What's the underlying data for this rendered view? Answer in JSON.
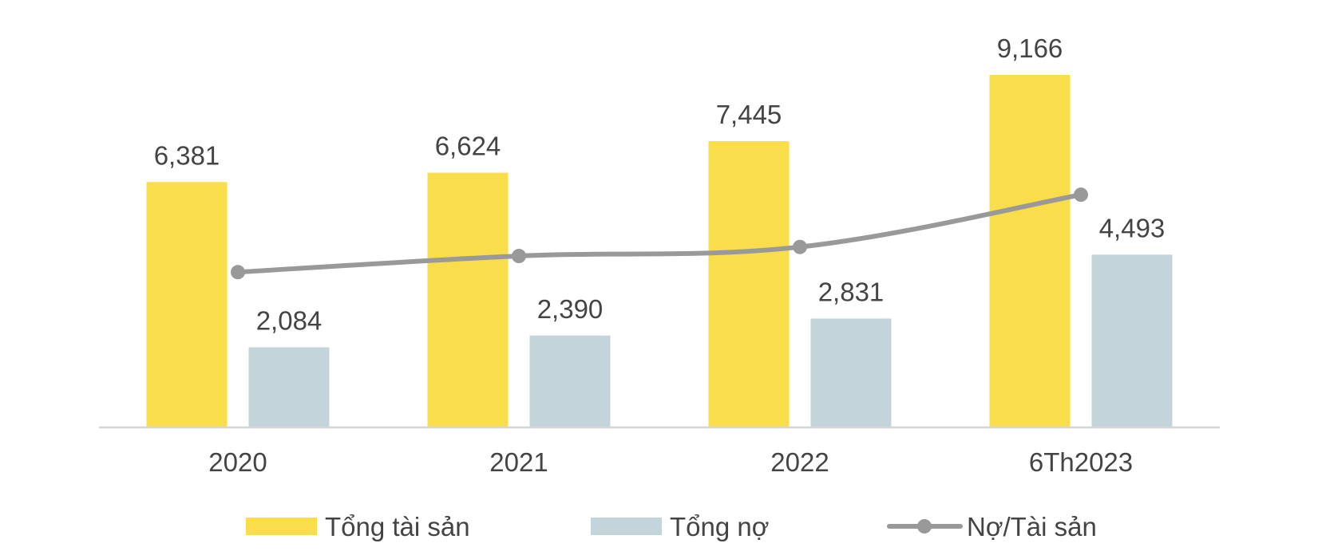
{
  "chart_data": {
    "type": "bar",
    "categories": [
      "2020",
      "2021",
      "2022",
      "6Th2023"
    ],
    "series": [
      {
        "name": "Tổng tài sản",
        "values": [
          6381,
          6624,
          7445,
          9166
        ],
        "labels": [
          "6,381",
          "6,624",
          "7,445",
          "9,166"
        ],
        "color": "#F9DD4A"
      },
      {
        "name": "Tổng nợ",
        "values": [
          2084,
          2390,
          2831,
          4493
        ],
        "labels": [
          "2,084",
          "2,390",
          "2,831",
          "4,493"
        ],
        "color": "#C3D4DA"
      }
    ],
    "line_series": {
      "name": "Nợ/Tài sản",
      "values": [
        0.327,
        0.361,
        0.38,
        0.49
      ],
      "color": "#999999"
    },
    "ylim": [
      0,
      9900
    ],
    "line_ylim": [
      0,
      0.9
    ],
    "legend": "bottom",
    "grid": false
  }
}
